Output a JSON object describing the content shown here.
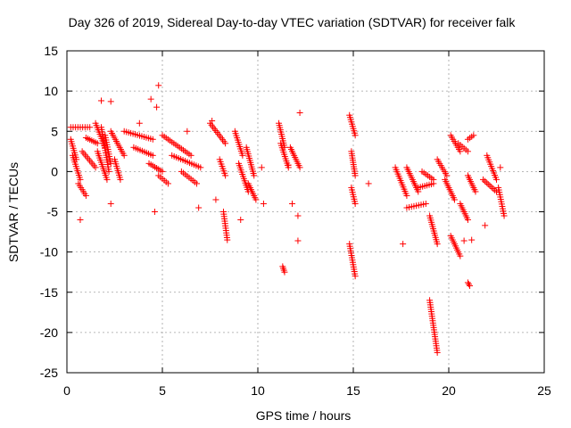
{
  "chart_data": {
    "type": "scatter",
    "title": "Day 326 of 2019, Sidereal Day-to-day VTEC variation (SDTVAR) for receiver falk",
    "xlabel": "GPS time / hours",
    "ylabel": "SDTVAR / TECUs",
    "xlim": [
      0,
      25
    ],
    "ylim": [
      -25,
      15
    ],
    "xticks": [
      0,
      5,
      10,
      15,
      20,
      25
    ],
    "yticks": [
      -25,
      -20,
      -15,
      -10,
      -5,
      0,
      5,
      10,
      15
    ],
    "grid": true,
    "marker": "+",
    "color": "#ff0000",
    "segments": [
      {
        "x": [
          0.2,
          1.2
        ],
        "y": [
          5.5,
          5.5
        ]
      },
      {
        "x": [
          0.2,
          0.5
        ],
        "y": [
          4.0,
          1.5
        ]
      },
      {
        "x": [
          0.3,
          0.7
        ],
        "y": [
          2.0,
          -1.0
        ]
      },
      {
        "x": [
          0.6,
          1.0
        ],
        "y": [
          -1.5,
          -3.0
        ]
      },
      {
        "x": [
          0.8,
          1.5
        ],
        "y": [
          2.5,
          0.5
        ]
      },
      {
        "x": [
          1.0,
          1.6
        ],
        "y": [
          4.2,
          3.5
        ]
      },
      {
        "x": [
          1.5,
          2.0
        ],
        "y": [
          6.0,
          3.0
        ]
      },
      {
        "x": [
          1.6,
          2.1
        ],
        "y": [
          2.5,
          -1.0
        ]
      },
      {
        "x": [
          1.8,
          2.2
        ],
        "y": [
          5.5,
          0.0
        ]
      },
      {
        "x": [
          2.0,
          2.3
        ],
        "y": [
          4.5,
          1.0
        ]
      },
      {
        "x": [
          2.3,
          3.0
        ],
        "y": [
          5.0,
          2.0
        ]
      },
      {
        "x": [
          2.5,
          2.8
        ],
        "y": [
          1.5,
          -1.0
        ]
      },
      {
        "x": [
          3.0,
          4.5
        ],
        "y": [
          5.0,
          4.0
        ]
      },
      {
        "x": [
          3.5,
          4.5
        ],
        "y": [
          3.0,
          2.0
        ]
      },
      {
        "x": [
          4.3,
          5.0
        ],
        "y": [
          1.0,
          0.0
        ]
      },
      {
        "x": [
          4.8,
          5.3
        ],
        "y": [
          -0.5,
          -1.5
        ]
      },
      {
        "x": [
          5.0,
          6.5
        ],
        "y": [
          4.5,
          2.0
        ]
      },
      {
        "x": [
          5.5,
          7.0
        ],
        "y": [
          2.0,
          0.5
        ]
      },
      {
        "x": [
          6.0,
          6.8
        ],
        "y": [
          0.0,
          -1.5
        ]
      },
      {
        "x": [
          7.5,
          8.3
        ],
        "y": [
          6.0,
          3.5
        ]
      },
      {
        "x": [
          8.0,
          8.3
        ],
        "y": [
          1.5,
          -0.5
        ]
      },
      {
        "x": [
          8.2,
          8.4
        ],
        "y": [
          -5.0,
          -8.5
        ]
      },
      {
        "x": [
          8.8,
          9.2
        ],
        "y": [
          5.0,
          2.0
        ]
      },
      {
        "x": [
          9.0,
          9.5
        ],
        "y": [
          1.0,
          -2.5
        ]
      },
      {
        "x": [
          9.4,
          9.8
        ],
        "y": [
          3.0,
          -0.5
        ]
      },
      {
        "x": [
          9.5,
          9.9
        ],
        "y": [
          -1.5,
          -3.5
        ]
      },
      {
        "x": [
          11.1,
          11.4
        ],
        "y": [
          6.0,
          3.0
        ]
      },
      {
        "x": [
          11.2,
          11.6
        ],
        "y": [
          3.5,
          0.5
        ]
      },
      {
        "x": [
          11.3,
          11.4
        ],
        "y": [
          -11.8,
          -12.5
        ]
      },
      {
        "x": [
          11.7,
          12.2
        ],
        "y": [
          3.0,
          0.5
        ]
      },
      {
        "x": [
          14.8,
          15.1
        ],
        "y": [
          7.0,
          4.5
        ]
      },
      {
        "x": [
          14.9,
          15.1
        ],
        "y": [
          2.5,
          -0.5
        ]
      },
      {
        "x": [
          14.9,
          15.1
        ],
        "y": [
          -2.0,
          -4.0
        ]
      },
      {
        "x": [
          14.8,
          15.1
        ],
        "y": [
          -9.0,
          -13.0
        ]
      },
      {
        "x": [
          17.2,
          17.8
        ],
        "y": [
          0.5,
          -3.0
        ]
      },
      {
        "x": [
          17.8,
          18.4
        ],
        "y": [
          0.5,
          -2.5
        ]
      },
      {
        "x": [
          17.8,
          18.8
        ],
        "y": [
          -4.5,
          -4.0
        ]
      },
      {
        "x": [
          18.4,
          19.2
        ],
        "y": [
          -2.0,
          -1.5
        ]
      },
      {
        "x": [
          18.6,
          19.2
        ],
        "y": [
          0.0,
          -1.0
        ]
      },
      {
        "x": [
          19.0,
          19.4
        ],
        "y": [
          -5.5,
          -9.0
        ]
      },
      {
        "x": [
          19.0,
          19.4
        ],
        "y": [
          -16.0,
          -22.5
        ]
      },
      {
        "x": [
          19.4,
          19.9
        ],
        "y": [
          1.5,
          -0.5
        ]
      },
      {
        "x": [
          19.8,
          20.3
        ],
        "y": [
          -1.0,
          -3.5
        ]
      },
      {
        "x": [
          20.1,
          20.6
        ],
        "y": [
          4.5,
          2.5
        ]
      },
      {
        "x": [
          20.5,
          21.0
        ],
        "y": [
          3.5,
          2.5
        ]
      },
      {
        "x": [
          20.1,
          20.6
        ],
        "y": [
          -8.0,
          -10.5
        ]
      },
      {
        "x": [
          20.6,
          21.0
        ],
        "y": [
          -4.0,
          -6.0
        ]
      },
      {
        "x": [
          21.0,
          21.4
        ],
        "y": [
          -0.5,
          -2.5
        ]
      },
      {
        "x": [
          21.0,
          21.1
        ],
        "y": [
          -13.8,
          -14.2
        ]
      },
      {
        "x": [
          21.0,
          21.3
        ],
        "y": [
          4.0,
          4.5
        ]
      },
      {
        "x": [
          21.8,
          22.5
        ],
        "y": [
          -1.0,
          -2.5
        ]
      },
      {
        "x": [
          22.0,
          22.5
        ],
        "y": [
          2.0,
          -1.0
        ]
      },
      {
        "x": [
          22.6,
          22.9
        ],
        "y": [
          -2.0,
          -5.5
        ]
      }
    ],
    "scatter_points": [
      {
        "x": 0.7,
        "y": -6.0
      },
      {
        "x": 1.8,
        "y": 8.8
      },
      {
        "x": 2.3,
        "y": 8.7
      },
      {
        "x": 2.3,
        "y": -4.0
      },
      {
        "x": 4.4,
        "y": 9.0
      },
      {
        "x": 4.8,
        "y": 10.7
      },
      {
        "x": 4.7,
        "y": 8.0
      },
      {
        "x": 4.6,
        "y": -5.0
      },
      {
        "x": 6.9,
        "y": -4.5
      },
      {
        "x": 7.6,
        "y": 6.3
      },
      {
        "x": 7.8,
        "y": -3.5
      },
      {
        "x": 9.1,
        "y": -6.0
      },
      {
        "x": 10.2,
        "y": 0.5
      },
      {
        "x": 10.3,
        "y": -4.0
      },
      {
        "x": 11.8,
        "y": -4.0
      },
      {
        "x": 12.1,
        "y": -5.5
      },
      {
        "x": 12.1,
        "y": -8.6
      },
      {
        "x": 12.2,
        "y": 7.3
      },
      {
        "x": 15.8,
        "y": -1.5
      },
      {
        "x": 17.6,
        "y": -9.0
      },
      {
        "x": 20.8,
        "y": -8.6
      },
      {
        "x": 21.2,
        "y": -8.5
      },
      {
        "x": 21.9,
        "y": -6.7
      },
      {
        "x": 22.7,
        "y": 0.5
      },
      {
        "x": 11.6,
        "y": 0.8
      },
      {
        "x": 6.3,
        "y": 5.0
      },
      {
        "x": 3.8,
        "y": 6.0
      }
    ]
  }
}
